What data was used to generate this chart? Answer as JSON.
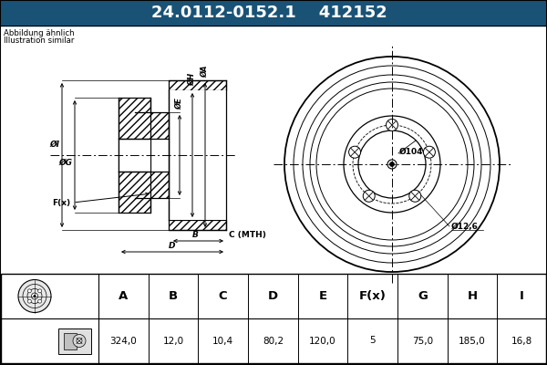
{
  "part_number": "24.0112-0152.1",
  "part_number2": "412152",
  "subtitle1": "Abbildung ähnlich",
  "subtitle2": "Illustration similar",
  "header_bg": "#1a5276",
  "header_text": "#ffffff",
  "bg_color": "#c8dce8",
  "draw_bg": "#ffffff",
  "table_bg": "#ffffff",
  "table_headers": [
    "A",
    "B",
    "C",
    "D",
    "E",
    "F(x)",
    "G",
    "H",
    "I"
  ],
  "table_values": [
    "324,0",
    "12,0",
    "10,4",
    "80,2",
    "120,0",
    "5",
    "75,0",
    "185,0",
    "16,8"
  ],
  "annotation_104": "Ø104",
  "annotation_126": "Ø12,6"
}
